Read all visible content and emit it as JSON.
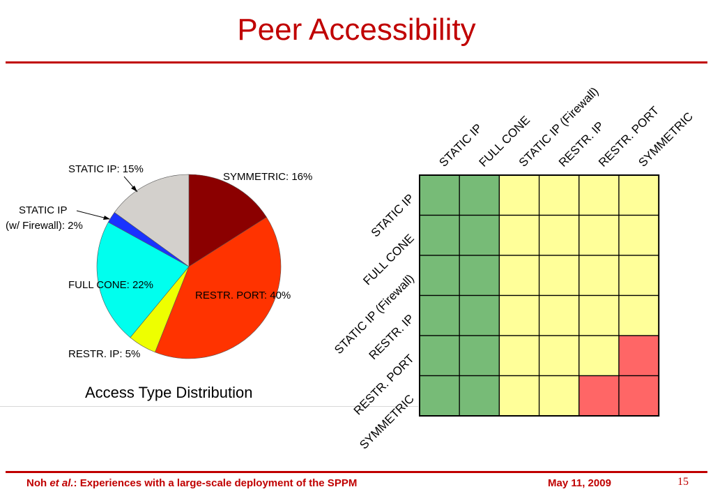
{
  "slide": {
    "title": "Peer Accessibility",
    "footer_author": "Noh",
    "footer_etal": "et al.",
    "footer_rest": ": Experiences with a large-scale deployment of the SPPM",
    "footer_date": "May 11, 2009",
    "page_number": "15"
  },
  "chart_data": [
    {
      "type": "pie",
      "title": "Access Type Distribution",
      "slices": [
        {
          "label": "SYMMETRIC: 16%",
          "value": 16,
          "color": "#8b0000"
        },
        {
          "label": "RESTR. PORT: 40%",
          "value": 40,
          "color": "#ff3300"
        },
        {
          "label": "RESTR. IP: 5%",
          "value": 5,
          "color": "#eeff00"
        },
        {
          "label": "FULL CONE: 22%",
          "value": 22,
          "color": "#00ffee"
        },
        {
          "label_line1": "STATIC IP",
          "label_line2": "(w/ Firewall): 2%",
          "value": 2,
          "color": "#1a33ff"
        },
        {
          "label": "STATIC IP: 15%",
          "value": 15,
          "color": "#d3d0cc"
        }
      ]
    },
    {
      "type": "heatmap",
      "columns": [
        "STATIC IP",
        "FULL CONE",
        "STATIC IP (Firewall)",
        "RESTR. IP",
        "RESTR. PORT",
        "SYMMETRIC"
      ],
      "rows": [
        "STATIC IP",
        "FULL CONE",
        "STATIC IP (Firewall)",
        "RESTR. IP",
        "RESTR. PORT",
        "SYMMETRIC"
      ],
      "colors": {
        "green": "#77bb77",
        "yellow": "#ffff99",
        "red": "#ff6666"
      },
      "cells": [
        [
          "green",
          "green",
          "yellow",
          "yellow",
          "yellow",
          "yellow"
        ],
        [
          "green",
          "green",
          "yellow",
          "yellow",
          "yellow",
          "yellow"
        ],
        [
          "green",
          "green",
          "yellow",
          "yellow",
          "yellow",
          "yellow"
        ],
        [
          "green",
          "green",
          "yellow",
          "yellow",
          "yellow",
          "yellow"
        ],
        [
          "green",
          "green",
          "yellow",
          "yellow",
          "yellow",
          "red"
        ],
        [
          "green",
          "green",
          "yellow",
          "yellow",
          "red",
          "red"
        ]
      ]
    }
  ]
}
